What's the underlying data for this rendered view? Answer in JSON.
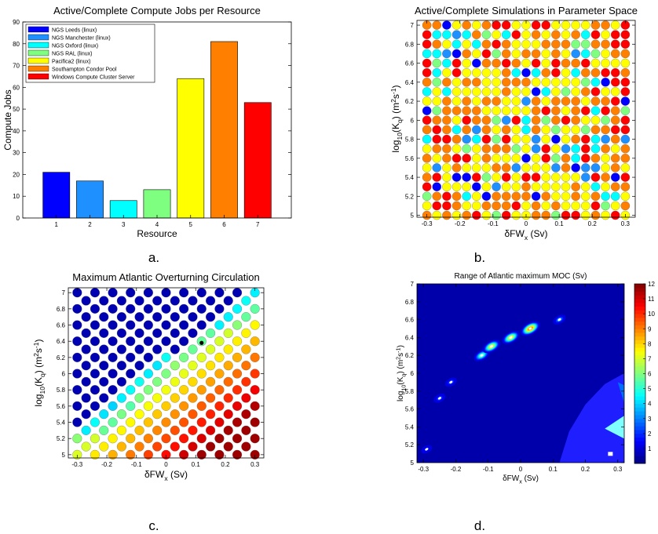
{
  "captions": [
    "a.",
    "b.",
    "c.",
    "d."
  ],
  "chart_data": [
    {
      "type": "bar",
      "title": "Active/Complete Compute Jobs per Resource",
      "xlabel": "Resource",
      "ylabel": "Compute Jobs",
      "categories": [
        "1",
        "2",
        "3",
        "4",
        "5",
        "6",
        "7"
      ],
      "values": [
        21,
        17,
        8,
        13,
        64,
        81,
        53
      ],
      "ylim": [
        0,
        90
      ],
      "yticks": [
        "0",
        "10",
        "20",
        "30",
        "40",
        "50",
        "60",
        "70",
        "80",
        "90"
      ],
      "colors": [
        "#0000ff",
        "#1e90ff",
        "#00ffff",
        "#7fff7f",
        "#ffff00",
        "#ff8000",
        "#ff0000"
      ],
      "legend": {
        "position": "top-left",
        "entries": [
          "NGS Leeds (linux)",
          "NGS Manchester (linux)",
          "NGS Oxford (linux)",
          "NGS RAL (linux)",
          "Pacifica2 (linux)",
          "Southampton Condor Pool",
          "Windows Compute Cluster Server"
        ]
      }
    },
    {
      "type": "scatter",
      "title": "Active/Complete Simulations in Parameter Space",
      "xlabel_main": "δFW",
      "xlabel_sub": "x",
      "xlabel_unit": " (Sv)",
      "ylabel_pre": "log",
      "ylabel_sub1": "10",
      "ylabel_mid": "(K",
      "ylabel_sub2": "q",
      "ylabel_post": ") (m",
      "ylabel_sup1": "2",
      "ylabel_s": "s",
      "ylabel_sup2": "-1",
      "ylabel_end": ")",
      "xlim": [
        -0.33,
        0.33
      ],
      "ylim": [
        4.98,
        7.05
      ],
      "xticks": [
        "-0.3",
        "-0.2",
        "-0.1",
        "0",
        "0.1",
        "0.2",
        "0.3"
      ],
      "yticks": [
        "5",
        "5.2",
        "5.4",
        "5.6",
        "5.8",
        "6",
        "6.2",
        "6.4",
        "6.6",
        "6.8",
        "7"
      ],
      "grid": "x from -0.3 to 0.3 step 0.03; y from 5 to 7 step 0.1",
      "colors": [
        "#0000ff",
        "#1e90ff",
        "#00ffff",
        "#7fff7f",
        "#ffff00",
        "#ff8000",
        "#ff0000"
      ],
      "marker_color": "each point colored by compute resource (legend of panel a)"
    },
    {
      "type": "scatter",
      "title": "Maximum Atlantic Overturning Circulation",
      "xlabel_main": "δFW",
      "xlabel_sub": "x",
      "xlabel_unit": " (Sv)",
      "ylabel_pre": "log",
      "ylabel_sub1": "10",
      "ylabel_mid": "(K",
      "ylabel_sub2": "q",
      "ylabel_post": ") (m",
      "ylabel_sup1": "2",
      "ylabel_s": "s",
      "ylabel_sup2": "-1",
      "ylabel_end": ")",
      "xlim": [
        -0.33,
        0.33
      ],
      "ylim": [
        4.96,
        7.06
      ],
      "xticks": [
        "-0.3",
        "-0.2",
        "-0.1",
        "0",
        "0.1",
        "0.2",
        "0.3"
      ],
      "yticks": [
        "5",
        "5.2",
        "5.4",
        "5.6",
        "5.8",
        "6",
        "6.2",
        "6.4",
        "6.6",
        "6.8",
        "7"
      ],
      "grid": "x from -0.3 to 0.3 step 0.06 (offset rows shifted by 0.03); y from 5 to 7 step 0.1",
      "colormap": "jet",
      "highlight_point": [
        0.12,
        6.38
      ],
      "note": "dark blue upper-left region (collapsed circulation), bands of cyan/green along a diagonal from (-0.3,5.3) to (0.3,6.9), warmer colors toward lower right"
    },
    {
      "type": "heatmap",
      "title": "Range of Atlantic maximum MOC (Sv)",
      "xlabel_main": "δFW",
      "xlabel_sub": "x",
      "xlabel_unit": " (Sv)",
      "ylabel_pre": "log",
      "ylabel_sub1": "10",
      "ylabel_mid": "(K",
      "ylabel_sub2": "q",
      "ylabel_post": ") (m",
      "ylabel_sup1": "2",
      "ylabel_s": "s",
      "ylabel_sup2": "-1",
      "ylabel_end": ")",
      "xlim": [
        -0.32,
        0.32
      ],
      "ylim": [
        5.0,
        7.0
      ],
      "xticks": [
        "-0.3",
        "-0.2",
        "-0.1",
        "0",
        "0.1",
        "0.2",
        "0.3"
      ],
      "yticks": [
        "5",
        "5.2",
        "5.4",
        "5.6",
        "5.8",
        "6",
        "6.2",
        "6.4",
        "6.6",
        "6.8",
        "7"
      ],
      "colorbar_ticks": [
        "1",
        "2",
        "3",
        "4",
        "5",
        "6",
        "7",
        "8",
        "9",
        "10",
        "11",
        "12"
      ],
      "colorbar_range": [
        0,
        12
      ],
      "background_value": 0.5,
      "hotspots": [
        {
          "x": -0.29,
          "y": 5.15,
          "peak": 2
        },
        {
          "x": -0.25,
          "y": 5.72,
          "peak": 3
        },
        {
          "x": -0.215,
          "y": 5.9,
          "peak": 3
        },
        {
          "x": -0.12,
          "y": 6.2,
          "peak": 7
        },
        {
          "x": -0.09,
          "y": 6.3,
          "peak": 9
        },
        {
          "x": -0.03,
          "y": 6.4,
          "peak": 9
        },
        {
          "x": 0.03,
          "y": 6.5,
          "peak": 11
        },
        {
          "x": 0.12,
          "y": 6.6,
          "peak": 4
        }
      ],
      "low_region": "blue region (~1.5-2.5 Sv) in the lower-right corner, from (0.12,5.0) to (0.32,6.0)"
    }
  ]
}
